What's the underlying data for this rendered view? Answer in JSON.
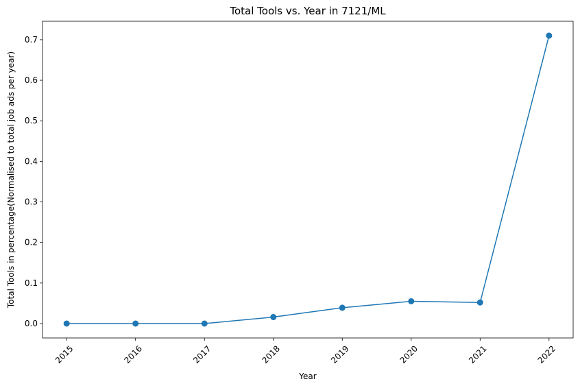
{
  "chart_data": {
    "type": "line",
    "title": "Total Tools vs. Year in 7121/ML",
    "xlabel": "Year",
    "ylabel": "Total Tools in percentage(Normalised to total job ads per year)",
    "x": [
      "2015",
      "2016",
      "2017",
      "2018",
      "2019",
      "2020",
      "2021",
      "2022"
    ],
    "y": [
      0.0,
      0.0,
      0.0,
      0.016,
      0.039,
      0.055,
      0.052,
      0.71
    ],
    "yticks": [
      0.0,
      0.1,
      0.2,
      0.3,
      0.4,
      0.5,
      0.6,
      0.7
    ],
    "ytick_labels": [
      "0.0",
      "0.1",
      "0.2",
      "0.3",
      "0.4",
      "0.5",
      "0.6",
      "0.7"
    ],
    "ylim": [
      -0.0355,
      0.7455
    ],
    "grid": false,
    "marker": "circle",
    "line_color": "#1f77b4"
  }
}
